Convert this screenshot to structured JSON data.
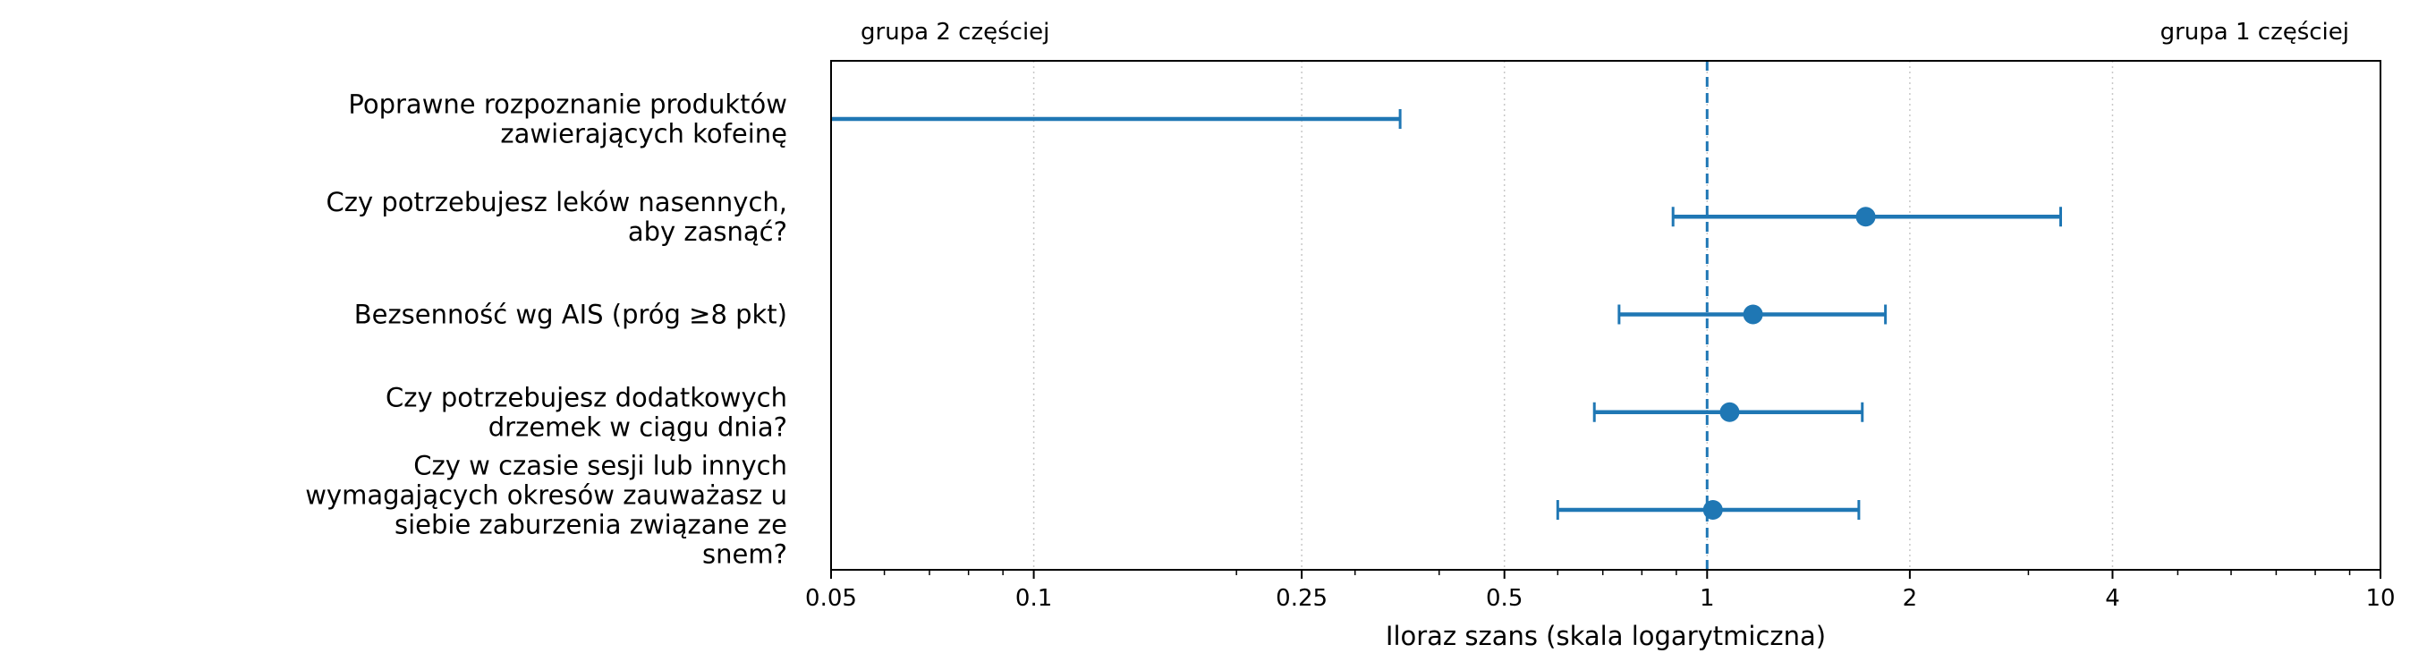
{
  "chart_data": {
    "type": "forest",
    "xlabel": "Iloraz szans (skala logarytmiczna)",
    "xscale": "log",
    "xlim": [
      0.05,
      10
    ],
    "xticks": [
      0.05,
      0.1,
      0.25,
      0.5,
      1,
      2,
      4,
      10
    ],
    "xtick_labels": [
      "0.05",
      "0.1",
      "0.25",
      "0.5",
      "1",
      "2",
      "4",
      "10"
    ],
    "reference_line": 1,
    "grid": "vertical dotted at major ticks",
    "annotation_left": "grupa 2 częściej",
    "annotation_right": "grupa 1 częściej",
    "color": "#1f77b4",
    "rows": [
      {
        "label": [
          "Poprawne rozpoznanie produktów",
          "zawierających kofeinę"
        ],
        "or": null,
        "ci_low": 0.05,
        "ci_high": 0.35
      },
      {
        "label": [
          "Czy potrzebujesz leków nasennych,",
          "aby zasnąć?"
        ],
        "or": 1.72,
        "ci_low": 0.89,
        "ci_high": 3.35
      },
      {
        "label": [
          "Bezsenność wg AIS (próg ≥8 pkt)"
        ],
        "or": 1.17,
        "ci_low": 0.74,
        "ci_high": 1.84
      },
      {
        "label": [
          "Czy potrzebujesz dodatkowych",
          "drzemek w ciągu dnia?"
        ],
        "or": 1.08,
        "ci_low": 0.68,
        "ci_high": 1.7
      },
      {
        "label": [
          "Czy w czasie sesji lub innych",
          "wymagających okresów zauważasz u",
          "siebie zaburzenia związane ze",
          "snem?"
        ],
        "or": 1.02,
        "ci_low": 0.6,
        "ci_high": 1.68
      }
    ]
  }
}
